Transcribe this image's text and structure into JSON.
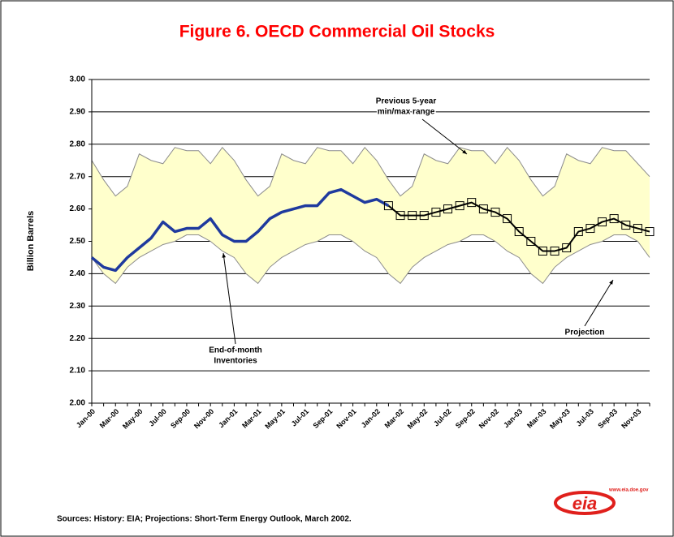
{
  "chart_data": {
    "type": "line",
    "title": "Figure 6. OECD Commercial Oil Stocks",
    "y_label": "Billion Barrels",
    "categories": [
      "Jan-00",
      null,
      "Mar-00",
      null,
      "May-00",
      null,
      "Jul-00",
      null,
      "Sep-00",
      null,
      "Nov-00",
      null,
      "Jan-01",
      null,
      "Mar-01",
      null,
      "May-01",
      null,
      "Jul-01",
      null,
      "Sep-01",
      null,
      "Nov-01",
      null,
      "Jan-02",
      null,
      "Mar-02",
      null,
      "May-02",
      null,
      "Jul-02",
      null,
      "Sep-02",
      null,
      "Nov-02",
      null,
      "Jan-03",
      null,
      "Mar-03",
      null,
      "May-03",
      null,
      "Jul-03",
      null,
      "Sep-03",
      null,
      "Nov-03",
      null
    ],
    "ylim": [
      2.0,
      3.0
    ],
    "yticks": [
      {
        "value": 2.0,
        "label": "2.00"
      },
      {
        "value": 2.1,
        "label": "2.10"
      },
      {
        "value": 2.2,
        "label": "2.20"
      },
      {
        "value": 2.3,
        "label": "2.30"
      },
      {
        "value": 2.4,
        "label": "2.40"
      },
      {
        "value": 2.5,
        "label": "2.50"
      },
      {
        "value": 2.6,
        "label": "2.60"
      },
      {
        "value": 2.7,
        "label": "2.70"
      },
      {
        "value": 2.8,
        "label": "2.80"
      },
      {
        "value": 2.9,
        "label": "2.90"
      },
      {
        "value": 3.0,
        "label": "3.00"
      }
    ],
    "grid": true,
    "band": {
      "fill": "#ffffcc",
      "color": "#8c8c8c",
      "upper": [
        2.75,
        2.69,
        2.64,
        2.67,
        2.77,
        2.75,
        2.74,
        2.79,
        2.78,
        2.78,
        2.74,
        2.79,
        2.75,
        2.69,
        2.64,
        2.67,
        2.77,
        2.75,
        2.74,
        2.79,
        2.78,
        2.78,
        2.74,
        2.79,
        2.75,
        2.69,
        2.64,
        2.67,
        2.77,
        2.75,
        2.74,
        2.79,
        2.78,
        2.78,
        2.74,
        2.79,
        2.75,
        2.69,
        2.64,
        2.67,
        2.77,
        2.75,
        2.74,
        2.79,
        2.78,
        2.78,
        2.74,
        2.7
      ],
      "lower": [
        2.45,
        2.4,
        2.37,
        2.42,
        2.45,
        2.47,
        2.49,
        2.5,
        2.52,
        2.52,
        2.5,
        2.47,
        2.45,
        2.4,
        2.37,
        2.42,
        2.45,
        2.47,
        2.49,
        2.5,
        2.52,
        2.52,
        2.5,
        2.47,
        2.45,
        2.4,
        2.37,
        2.42,
        2.45,
        2.47,
        2.49,
        2.5,
        2.52,
        2.52,
        2.5,
        2.47,
        2.45,
        2.4,
        2.37,
        2.42,
        2.45,
        2.47,
        2.49,
        2.5,
        2.52,
        2.52,
        2.5,
        2.45
      ]
    },
    "series": [
      {
        "color": "#1f3a9e",
        "values": [
          2.45,
          2.42,
          2.41,
          2.45,
          2.48,
          2.51,
          2.56,
          2.53,
          2.54,
          2.54,
          2.57,
          2.52,
          2.5,
          2.5,
          2.53,
          2.57,
          2.59,
          2.6,
          2.61,
          2.61,
          2.65,
          2.66,
          2.64,
          2.62,
          2.63,
          2.61,
          null,
          null,
          null,
          null,
          null,
          null,
          null,
          null,
          null,
          null,
          null,
          null,
          null,
          null,
          null,
          null,
          null,
          null,
          null,
          null,
          null,
          null
        ]
      },
      {
        "color": "#000000",
        "marker": "square",
        "values": [
          null,
          null,
          null,
          null,
          null,
          null,
          null,
          null,
          null,
          null,
          null,
          null,
          null,
          null,
          null,
          null,
          null,
          null,
          null,
          null,
          null,
          null,
          null,
          null,
          null,
          2.61,
          2.58,
          2.58,
          2.58,
          2.59,
          2.6,
          2.61,
          2.62,
          2.6,
          2.59,
          2.57,
          2.53,
          2.5,
          2.47,
          2.47,
          2.48,
          2.53,
          2.54,
          2.56,
          2.57,
          2.55,
          2.54,
          2.53
        ]
      }
    ],
    "annotations": [
      [
        "Previous 5-year",
        "min/max range"
      ],
      [
        "End-of-month",
        "Inventories"
      ],
      [
        "Projection"
      ]
    ],
    "source": "Sources: History: EIA; Projections: Short-Term Energy Outlook, March 2002.",
    "logo_text": "eia",
    "logo_url": "www.eia.doe.gov"
  }
}
